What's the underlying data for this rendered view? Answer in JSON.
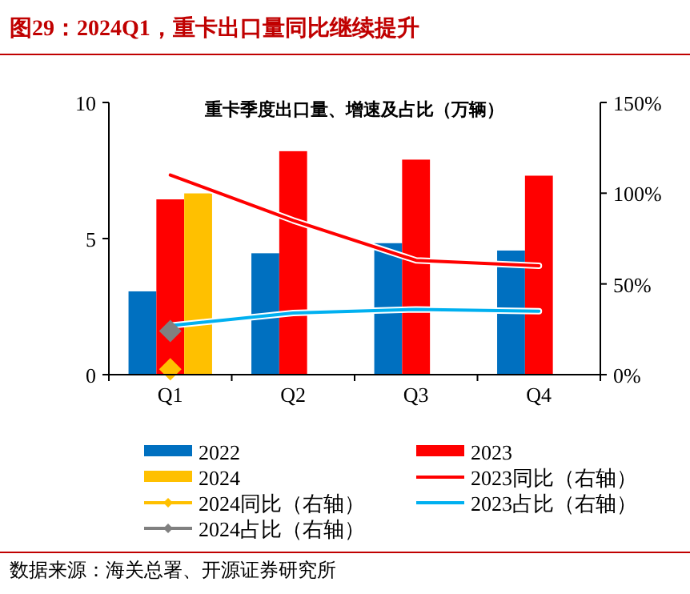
{
  "chart_data": {
    "type": "bar",
    "title": "图29：2024Q1，重卡出口量同比继续提升",
    "subtitle": "重卡季度出口量、增速及占比（万辆）",
    "annotations": [
      "数据来源：海关总署、开源证券研究所"
    ],
    "categories": [
      "Q1",
      "Q2",
      "Q3",
      "Q4"
    ],
    "ylim": [
      0,
      10
    ],
    "yticks": [
      0,
      5,
      10
    ],
    "y2lim": [
      0,
      150
    ],
    "y2ticks": [
      {
        "value": 0,
        "label": "0%"
      },
      {
        "value": 50,
        "label": "50%"
      },
      {
        "value": 100,
        "label": "100%"
      },
      {
        "value": 150,
        "label": "150%"
      }
    ],
    "grid": false,
    "legend": "bottom",
    "series": [
      {
        "name": "2022",
        "color": "#0070c0",
        "values": [
          3.06,
          4.46,
          4.83,
          4.56
        ]
      },
      {
        "name": "2023",
        "color": "#ff0000",
        "values": [
          6.44,
          8.21,
          7.9,
          7.31
        ]
      },
      {
        "name": "2024",
        "color": "#ffc000",
        "values": [
          6.66,
          null,
          null,
          null
        ]
      },
      {
        "name": "2023同比（右轴）",
        "type": "line",
        "axis": "y2",
        "color": "#ff0000",
        "marker": "none",
        "values": [
          110,
          85,
          63,
          60
        ]
      },
      {
        "name": "2024同比（右轴）",
        "type": "line",
        "axis": "y2",
        "color": "#ffc000",
        "marker": "diamond",
        "values": [
          3,
          null,
          null,
          null
        ]
      },
      {
        "name": "2023占比（右轴）",
        "type": "line",
        "axis": "y2",
        "color": "#00b0f0",
        "marker": "none",
        "values": [
          27,
          34,
          36,
          35
        ]
      },
      {
        "name": "2024占比（右轴）",
        "type": "line",
        "axis": "y2",
        "color": "#808080",
        "marker": "diamond",
        "values": [
          24,
          null,
          null,
          null
        ]
      }
    ]
  }
}
